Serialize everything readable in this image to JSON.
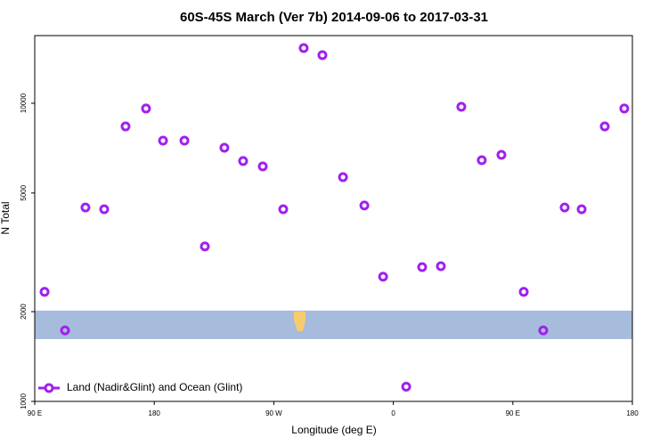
{
  "chart_data": {
    "type": "scatter",
    "title": "60S-45S March (Ver 7b)   2014-09-06 to 2017-03-31",
    "x_label": "Longitude (deg E)",
    "y_label": "N Total",
    "series": [
      {
        "name": "Land (Nadir&Glint) and Ocean (Glint)",
        "color": "#a020f0",
        "x": [
          97.4,
          112.8,
          128.2,
          142.3,
          158.4,
          173.8,
          186.6,
          202.7,
          218.1,
          232.8,
          246.9,
          261.7,
          277.1,
          292.5,
          306.6,
          322.1,
          338.2,
          352.3,
          369.7,
          381.7,
          395.8,
          411.2,
          426.6,
          441.4,
          458.2,
          472.9,
          489.0,
          501.8,
          519.2,
          533.9
        ],
        "values": [
          2330,
          1730,
          4470,
          4410,
          8360,
          9600,
          7490,
          7490,
          3310,
          7090,
          6400,
          6140,
          4410,
          15310,
          14500,
          5650,
          4540,
          2620,
          1120,
          2820,
          2840,
          9730,
          6440,
          6710,
          2330,
          1730,
          4470,
          4410,
          8360,
          9600
        ]
      }
    ],
    "xlim": [
      90,
      540
    ],
    "xticks": [
      {
        "value": 90,
        "label": "90 E"
      },
      {
        "value": 180,
        "label": "180"
      },
      {
        "value": 270,
        "label": "90 W"
      },
      {
        "value": 360,
        "label": "0"
      },
      {
        "value": 450,
        "label": "90 E"
      },
      {
        "value": 540,
        "label": "180"
      }
    ],
    "ylim": [
      1000,
      16860
    ],
    "yticks": [
      1000,
      2000,
      5000,
      10000
    ],
    "log_y": true,
    "legend": "bottom-left"
  }
}
